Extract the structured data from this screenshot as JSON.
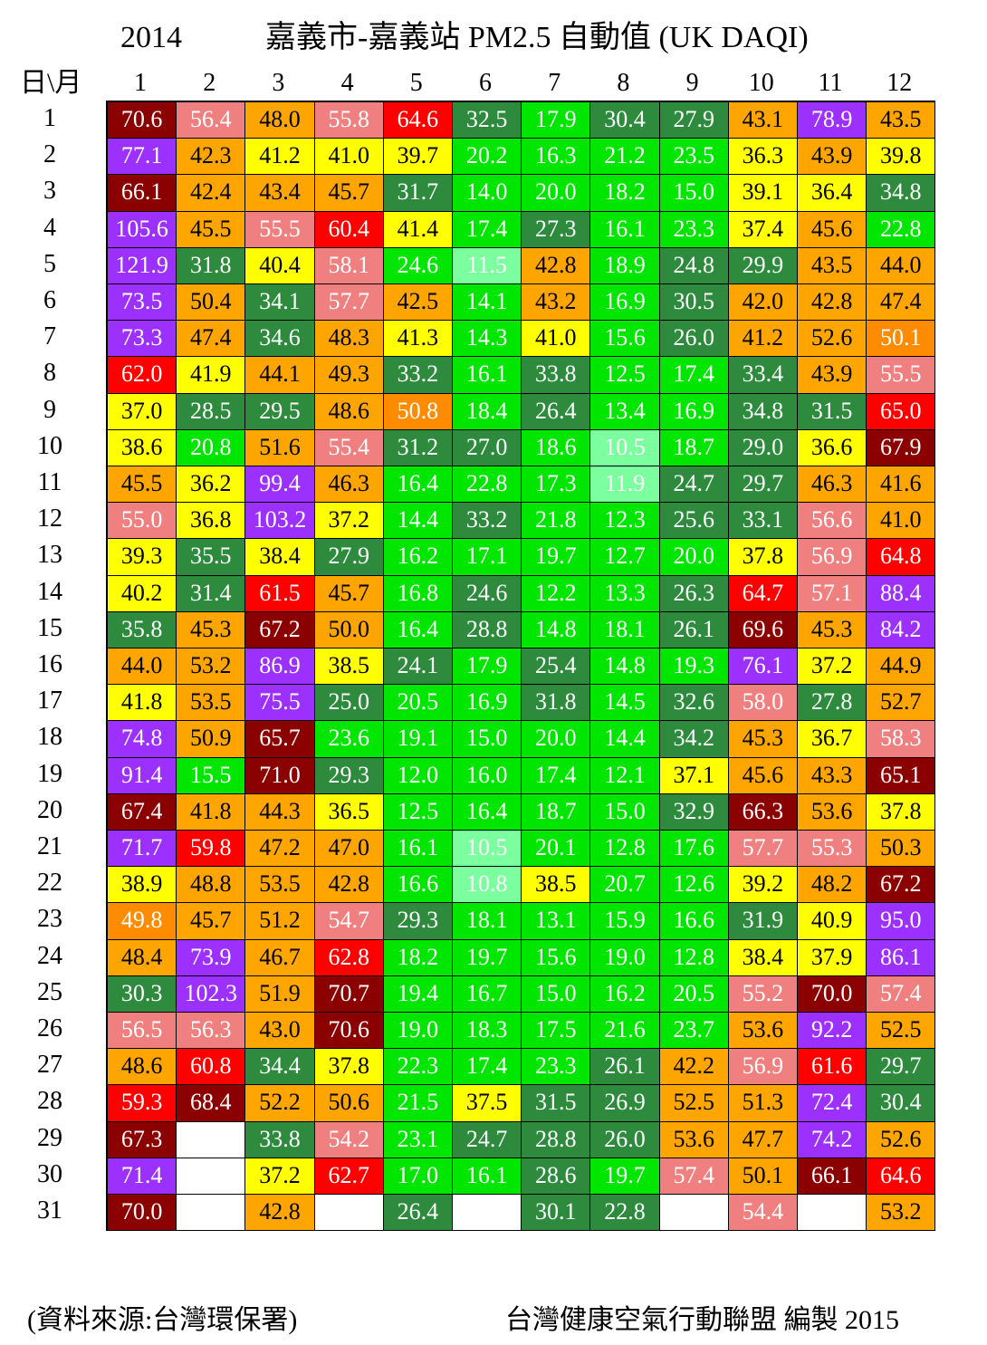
{
  "chart_data": {
    "type": "heatmap",
    "year_label": "2014",
    "title": "嘉義市-嘉義站 PM2.5 自動值  (UK DAQI)",
    "corner_label": "日\\月",
    "months": [
      "1",
      "2",
      "3",
      "4",
      "5",
      "6",
      "7",
      "8",
      "9",
      "10",
      "11",
      "12"
    ],
    "days": [
      "1",
      "2",
      "3",
      "4",
      "5",
      "6",
      "7",
      "8",
      "9",
      "10",
      "11",
      "12",
      "13",
      "14",
      "15",
      "16",
      "17",
      "18",
      "19",
      "20",
      "21",
      "22",
      "23",
      "24",
      "25",
      "26",
      "27",
      "28",
      "29",
      "30",
      "31"
    ],
    "values": [
      [
        "70.6",
        "56.4",
        "48.0",
        "55.8",
        "64.6",
        "32.5",
        "17.9",
        "30.4",
        "27.9",
        "43.1",
        "78.9",
        "43.5"
      ],
      [
        "77.1",
        "42.3",
        "41.2",
        "41.0",
        "39.7",
        "20.2",
        "16.3",
        "21.2",
        "23.5",
        "36.3",
        "43.9",
        "39.8"
      ],
      [
        "66.1",
        "42.4",
        "43.4",
        "45.7",
        "31.7",
        "14.0",
        "20.0",
        "18.2",
        "15.0",
        "39.1",
        "36.4",
        "34.8"
      ],
      [
        "105.6",
        "45.5",
        "55.5",
        "60.4",
        "41.4",
        "17.4",
        "27.3",
        "16.1",
        "23.3",
        "37.4",
        "45.6",
        "22.8"
      ],
      [
        "121.9",
        "31.8",
        "40.4",
        "58.1",
        "24.6",
        "11.5",
        "42.8",
        "18.9",
        "24.8",
        "29.9",
        "43.5",
        "44.0"
      ],
      [
        "73.5",
        "50.4",
        "34.1",
        "57.7",
        "42.5",
        "14.1",
        "43.2",
        "16.9",
        "30.5",
        "42.0",
        "42.8",
        "47.4"
      ],
      [
        "73.3",
        "47.4",
        "34.6",
        "48.3",
        "41.3",
        "14.3",
        "41.0",
        "15.6",
        "26.0",
        "41.2",
        "52.6",
        "50.1"
      ],
      [
        "62.0",
        "41.9",
        "44.1",
        "49.3",
        "33.2",
        "16.1",
        "33.8",
        "12.5",
        "17.4",
        "33.4",
        "43.9",
        "55.5"
      ],
      [
        "37.0",
        "28.5",
        "29.5",
        "48.6",
        "50.8",
        "18.4",
        "26.4",
        "13.4",
        "16.9",
        "34.8",
        "31.5",
        "65.0"
      ],
      [
        "38.6",
        "20.8",
        "51.6",
        "55.4",
        "31.2",
        "27.0",
        "18.6",
        "10.5",
        "18.7",
        "29.0",
        "36.6",
        "67.9"
      ],
      [
        "45.5",
        "36.2",
        "99.4",
        "46.3",
        "16.4",
        "22.8",
        "17.3",
        "11.9",
        "24.7",
        "29.7",
        "46.3",
        "41.6"
      ],
      [
        "55.0",
        "36.8",
        "103.2",
        "37.2",
        "14.4",
        "33.2",
        "21.8",
        "12.3",
        "25.6",
        "33.1",
        "56.6",
        "41.0"
      ],
      [
        "39.3",
        "35.5",
        "38.4",
        "27.9",
        "16.2",
        "17.1",
        "19.7",
        "12.7",
        "20.0",
        "37.8",
        "56.9",
        "64.8"
      ],
      [
        "40.2",
        "31.4",
        "61.5",
        "45.7",
        "16.8",
        "24.6",
        "12.2",
        "13.3",
        "26.3",
        "64.7",
        "57.1",
        "88.4"
      ],
      [
        "35.8",
        "45.3",
        "67.2",
        "50.0",
        "16.4",
        "28.8",
        "14.8",
        "18.1",
        "26.1",
        "69.6",
        "45.3",
        "84.2"
      ],
      [
        "44.0",
        "53.2",
        "86.9",
        "38.5",
        "24.1",
        "17.9",
        "25.4",
        "14.8",
        "19.3",
        "76.1",
        "37.2",
        "44.9"
      ],
      [
        "41.8",
        "53.5",
        "75.5",
        "25.0",
        "20.5",
        "16.9",
        "31.8",
        "14.5",
        "32.6",
        "58.0",
        "27.8",
        "52.7"
      ],
      [
        "74.8",
        "50.9",
        "65.7",
        "23.6",
        "19.1",
        "15.0",
        "20.0",
        "14.4",
        "34.2",
        "45.3",
        "36.7",
        "58.3"
      ],
      [
        "91.4",
        "15.5",
        "71.0",
        "29.3",
        "12.0",
        "16.0",
        "17.4",
        "12.1",
        "37.1",
        "45.6",
        "43.3",
        "65.1"
      ],
      [
        "67.4",
        "41.8",
        "44.3",
        "36.5",
        "12.5",
        "16.4",
        "18.7",
        "15.0",
        "32.9",
        "66.3",
        "53.6",
        "37.8"
      ],
      [
        "71.7",
        "59.8",
        "47.2",
        "47.0",
        "16.1",
        "10.5",
        "20.1",
        "12.8",
        "17.6",
        "57.7",
        "55.3",
        "50.3"
      ],
      [
        "38.9",
        "48.8",
        "53.5",
        "42.8",
        "16.6",
        "10.8",
        "38.5",
        "20.7",
        "12.6",
        "39.2",
        "48.2",
        "67.2"
      ],
      [
        "49.8",
        "45.7",
        "51.2",
        "54.7",
        "29.3",
        "18.1",
        "13.1",
        "15.9",
        "16.6",
        "31.9",
        "40.9",
        "95.0"
      ],
      [
        "48.4",
        "73.9",
        "46.7",
        "62.8",
        "18.2",
        "19.7",
        "15.6",
        "19.0",
        "12.8",
        "38.4",
        "37.9",
        "86.1"
      ],
      [
        "30.3",
        "102.3",
        "51.9",
        "70.7",
        "19.4",
        "16.7",
        "15.0",
        "16.2",
        "20.5",
        "55.2",
        "70.0",
        "57.4"
      ],
      [
        "56.5",
        "56.3",
        "43.0",
        "70.6",
        "19.0",
        "18.3",
        "17.5",
        "21.6",
        "23.7",
        "53.6",
        "92.2",
        "52.5"
      ],
      [
        "48.6",
        "60.8",
        "34.4",
        "37.8",
        "22.3",
        "17.4",
        "23.3",
        "26.1",
        "42.2",
        "56.9",
        "61.6",
        "29.7"
      ],
      [
        "59.3",
        "68.4",
        "52.2",
        "50.6",
        "21.5",
        "37.5",
        "31.5",
        "26.9",
        "52.5",
        "51.3",
        "72.4",
        "30.4"
      ],
      [
        "67.3",
        "",
        "33.8",
        "54.2",
        "23.1",
        "24.7",
        "28.8",
        "26.0",
        "53.6",
        "47.7",
        "74.2",
        "52.6"
      ],
      [
        "71.4",
        "",
        "37.2",
        "62.7",
        "17.0",
        "16.1",
        "28.6",
        "19.7",
        "57.4",
        "50.1",
        "66.1",
        "64.6"
      ],
      [
        "70.0",
        "",
        "42.8",
        "",
        "26.4",
        "",
        "30.1",
        "22.8",
        "",
        "54.4",
        "",
        "53.2"
      ]
    ],
    "colors": [
      [
        "#8b0000",
        "#f08080",
        "#ffa500",
        "#f08080",
        "#ff0000",
        "#2e8b3e",
        "#00e600",
        "#2e8b3e",
        "#2e8b3e",
        "#ffa500",
        "#9b30ff",
        "#ffa500"
      ],
      [
        "#9b30ff",
        "#ffa500",
        "#ffff00",
        "#ffff00",
        "#ffff00",
        "#00e600",
        "#00e600",
        "#00e600",
        "#00e600",
        "#ffff00",
        "#ffa500",
        "#ffff00"
      ],
      [
        "#8b0000",
        "#ffa500",
        "#ffa500",
        "#ffa500",
        "#2e8b3e",
        "#00e600",
        "#00e600",
        "#00e600",
        "#00e600",
        "#ffff00",
        "#ffff00",
        "#2e8b3e"
      ],
      [
        "#9b30ff",
        "#ffa500",
        "#f08080",
        "#ff0000",
        "#ffff00",
        "#00e600",
        "#2e8b3e",
        "#00e600",
        "#00e600",
        "#ffff00",
        "#ffa500",
        "#00e600"
      ],
      [
        "#9b30ff",
        "#2e8b3e",
        "#ffff00",
        "#f08080",
        "#00e600",
        "#7cff9f",
        "#ffa500",
        "#00e600",
        "#2e8b3e",
        "#2e8b3e",
        "#ffa500",
        "#ffa500"
      ],
      [
        "#9b30ff",
        "#ffa500",
        "#2e8b3e",
        "#f08080",
        "#ffa500",
        "#00e600",
        "#ffa500",
        "#00e600",
        "#2e8b3e",
        "#ffa500",
        "#ffa500",
        "#ffa500"
      ],
      [
        "#9b30ff",
        "#ffa500",
        "#2e8b3e",
        "#ffa500",
        "#ffff00",
        "#00e600",
        "#ffff00",
        "#00e600",
        "#2e8b3e",
        "#ffa500",
        "#ffa500",
        "#ff8c00"
      ],
      [
        "#ff0000",
        "#ffff00",
        "#ffa500",
        "#ffa500",
        "#2e8b3e",
        "#00e600",
        "#2e8b3e",
        "#00e600",
        "#00e600",
        "#2e8b3e",
        "#ffa500",
        "#f08080"
      ],
      [
        "#ffff00",
        "#2e8b3e",
        "#2e8b3e",
        "#ffa500",
        "#ff8c00",
        "#00e600",
        "#2e8b3e",
        "#00e600",
        "#00e600",
        "#2e8b3e",
        "#2e8b3e",
        "#ff0000"
      ],
      [
        "#ffff00",
        "#00e600",
        "#ffa500",
        "#f08080",
        "#2e8b3e",
        "#2e8b3e",
        "#00e600",
        "#7cff9f",
        "#00e600",
        "#2e8b3e",
        "#ffff00",
        "#8b0000"
      ],
      [
        "#ffa500",
        "#ffff00",
        "#9b30ff",
        "#ffa500",
        "#00e600",
        "#00e600",
        "#00e600",
        "#7cff9f",
        "#2e8b3e",
        "#2e8b3e",
        "#ffa500",
        "#ffa500"
      ],
      [
        "#f08080",
        "#ffff00",
        "#9b30ff",
        "#ffff00",
        "#00e600",
        "#2e8b3e",
        "#00e600",
        "#00e600",
        "#2e8b3e",
        "#2e8b3e",
        "#f08080",
        "#ffa500"
      ],
      [
        "#ffff00",
        "#2e8b3e",
        "#ffff00",
        "#2e8b3e",
        "#00e600",
        "#00e600",
        "#00e600",
        "#00e600",
        "#00e600",
        "#ffff00",
        "#f08080",
        "#ff0000"
      ],
      [
        "#ffff00",
        "#2e8b3e",
        "#ff0000",
        "#ffa500",
        "#00e600",
        "#2e8b3e",
        "#00e600",
        "#00e600",
        "#2e8b3e",
        "#ff0000",
        "#f08080",
        "#9b30ff"
      ],
      [
        "#2e8b3e",
        "#ffa500",
        "#8b0000",
        "#ffa500",
        "#00e600",
        "#2e8b3e",
        "#00e600",
        "#00e600",
        "#2e8b3e",
        "#8b0000",
        "#ffa500",
        "#9b30ff"
      ],
      [
        "#ffa500",
        "#ffa500",
        "#9b30ff",
        "#ffff00",
        "#2e8b3e",
        "#00e600",
        "#2e8b3e",
        "#00e600",
        "#00e600",
        "#9b30ff",
        "#ffff00",
        "#ffa500"
      ],
      [
        "#ffff00",
        "#ffa500",
        "#9b30ff",
        "#2e8b3e",
        "#00e600",
        "#00e600",
        "#2e8b3e",
        "#00e600",
        "#2e8b3e",
        "#f08080",
        "#2e8b3e",
        "#ffa500"
      ],
      [
        "#9b30ff",
        "#ffa500",
        "#8b0000",
        "#00e600",
        "#00e600",
        "#00e600",
        "#00e600",
        "#00e600",
        "#2e8b3e",
        "#ffa500",
        "#ffff00",
        "#f08080"
      ],
      [
        "#9b30ff",
        "#00e600",
        "#8b0000",
        "#2e8b3e",
        "#00e600",
        "#00e600",
        "#00e600",
        "#00e600",
        "#ffff00",
        "#ffa500",
        "#ffa500",
        "#8b0000"
      ],
      [
        "#8b0000",
        "#ffa500",
        "#ffa500",
        "#ffff00",
        "#00e600",
        "#00e600",
        "#00e600",
        "#00e600",
        "#2e8b3e",
        "#8b0000",
        "#ffa500",
        "#ffff00"
      ],
      [
        "#9b30ff",
        "#ff0000",
        "#ffa500",
        "#ffa500",
        "#00e600",
        "#7cff9f",
        "#00e600",
        "#00e600",
        "#00e600",
        "#f08080",
        "#f08080",
        "#ffa500"
      ],
      [
        "#ffff00",
        "#ffa500",
        "#ffa500",
        "#ffa500",
        "#00e600",
        "#7cff9f",
        "#ffff00",
        "#00e600",
        "#00e600",
        "#ffff00",
        "#ffa500",
        "#8b0000"
      ],
      [
        "#ff8c00",
        "#ffa500",
        "#ffa500",
        "#f08080",
        "#2e8b3e",
        "#00e600",
        "#00e600",
        "#00e600",
        "#00e600",
        "#2e8b3e",
        "#ffff00",
        "#9b30ff"
      ],
      [
        "#ffa500",
        "#9b30ff",
        "#ffa500",
        "#ff0000",
        "#00e600",
        "#00e600",
        "#00e600",
        "#00e600",
        "#00e600",
        "#ffff00",
        "#ffff00",
        "#9b30ff"
      ],
      [
        "#2e8b3e",
        "#9b30ff",
        "#ffa500",
        "#8b0000",
        "#00e600",
        "#00e600",
        "#00e600",
        "#00e600",
        "#00e600",
        "#f08080",
        "#8b0000",
        "#f08080"
      ],
      [
        "#f08080",
        "#f08080",
        "#ffa500",
        "#8b0000",
        "#00e600",
        "#00e600",
        "#00e600",
        "#00e600",
        "#00e600",
        "#ffa500",
        "#9b30ff",
        "#ffa500"
      ],
      [
        "#ffa500",
        "#ff0000",
        "#2e8b3e",
        "#ffff00",
        "#00e600",
        "#00e600",
        "#00e600",
        "#2e8b3e",
        "#ffa500",
        "#f08080",
        "#ff0000",
        "#2e8b3e"
      ],
      [
        "#ff0000",
        "#8b0000",
        "#ffa500",
        "#ffa500",
        "#00e600",
        "#ffff00",
        "#2e8b3e",
        "#2e8b3e",
        "#ffa500",
        "#ffa500",
        "#9b30ff",
        "#2e8b3e"
      ],
      [
        "#8b0000",
        "#ffffff",
        "#2e8b3e",
        "#f08080",
        "#00e600",
        "#2e8b3e",
        "#2e8b3e",
        "#2e8b3e",
        "#ffa500",
        "#ffa500",
        "#9b30ff",
        "#ffa500"
      ],
      [
        "#9b30ff",
        "#ffffff",
        "#ffff00",
        "#ff0000",
        "#00e600",
        "#00e600",
        "#2e8b3e",
        "#00e600",
        "#f08080",
        "#ffa500",
        "#8b0000",
        "#ff0000"
      ],
      [
        "#8b0000",
        "#ffffff",
        "#ffa500",
        "#ffffff",
        "#2e8b3e",
        "#ffffff",
        "#2e8b3e",
        "#2e8b3e",
        "#ffffff",
        "#f08080",
        "#ffffff",
        "#ffa500"
      ]
    ]
  },
  "footer": {
    "source": "(資料來源:台灣環保署)",
    "credit": "台灣健康空氣行動聯盟 編製 2015"
  }
}
